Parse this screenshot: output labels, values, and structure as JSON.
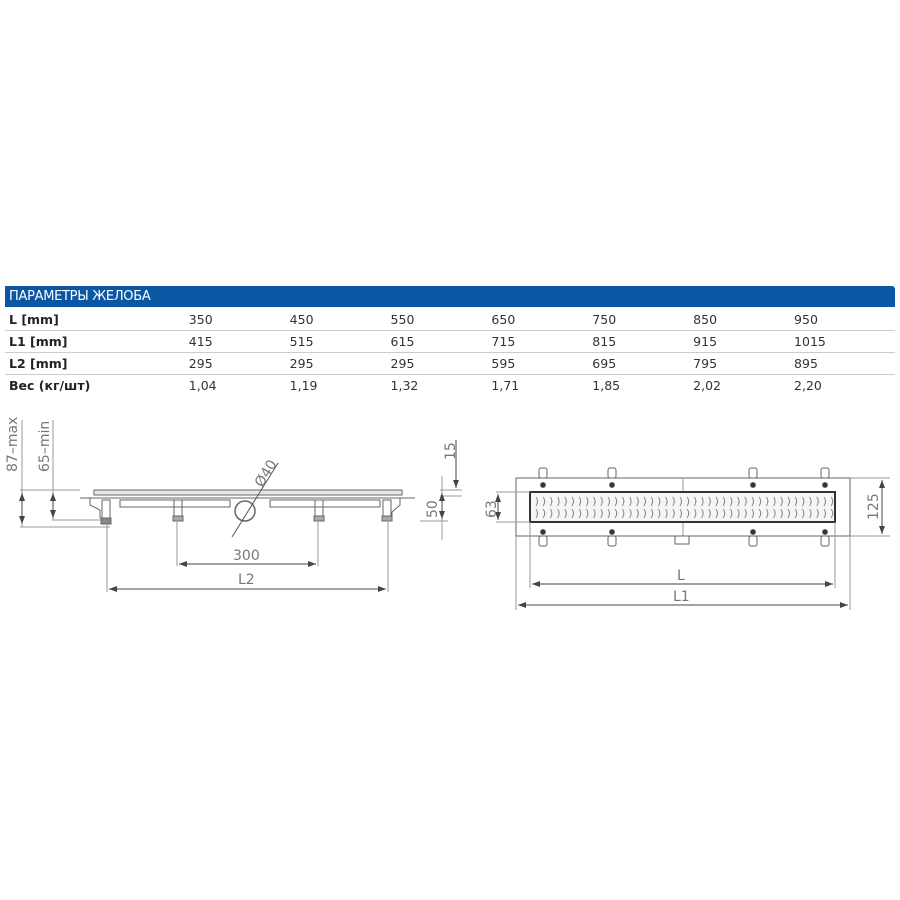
{
  "table": {
    "title": "ПАРАМЕТРЫ ЖЕЛОБА",
    "rows": [
      {
        "label": "L [mm]",
        "values": [
          "350",
          "450",
          "550",
          "650",
          "750",
          "850",
          "950"
        ]
      },
      {
        "label": "L1 [mm]",
        "values": [
          "415",
          "515",
          "615",
          "715",
          "815",
          "915",
          "1015"
        ]
      },
      {
        "label": "L2 [mm]",
        "values": [
          "295",
          "295",
          "295",
          "595",
          "695",
          "795",
          "895"
        ]
      },
      {
        "label": "Вес (кг/шт)",
        "values": [
          "1,04",
          "1,19",
          "1,32",
          "1,71",
          "1,85",
          "2,02",
          "2,20"
        ]
      }
    ],
    "header_color": "#0b57a4"
  },
  "side_view": {
    "dim_max": "87–max",
    "dim_min": "65–min",
    "dim_top": "15",
    "dim_height": "50",
    "dim_pipe": "Ø40",
    "dim_feet": "300",
    "dim_l2": "L2"
  },
  "top_view": {
    "dim_grate_width": "63",
    "dim_width": "125",
    "dim_l": "L",
    "dim_l1": "L1"
  }
}
